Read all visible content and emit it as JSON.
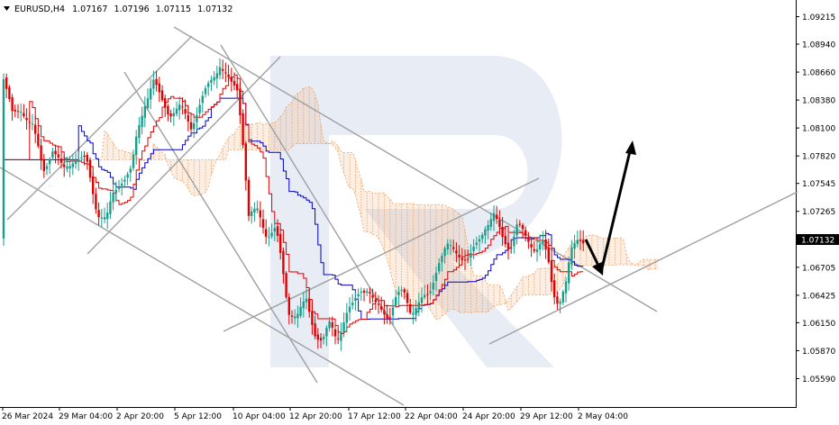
{
  "header": {
    "symbol": "EURUSD,H4",
    "open": "1.07167",
    "high": "1.07196",
    "low": "1.07115",
    "close": "1.07132"
  },
  "current_price_label": "1.07132",
  "colors": {
    "bull": "#1a9e8a",
    "bear": "#e00000",
    "tenkan": "#e00000",
    "kijun": "#0000c8",
    "cloud": "#f0a060",
    "trend": "#a0a0a0",
    "arrow": "#000000",
    "price_box": "#000000",
    "watermark": "#e8ecf4"
  },
  "chart_data": {
    "type": "candlestick",
    "symbol": "EURUSD",
    "timeframe": "H4",
    "ylim": [
      1.0559,
      1.0935
    ],
    "y_ticks": [
      "1.09215",
      "1.08940",
      "1.08660",
      "1.08380",
      "1.08100",
      "1.07820",
      "1.07545",
      "1.07265",
      "1.06985",
      "1.06705",
      "1.06425",
      "1.06150",
      "1.05870",
      "1.05590"
    ],
    "x_ticks": [
      "26 Mar 2024",
      "29 Mar 04:00",
      "2 Apr 20:00",
      "5 Apr 12:00",
      "10 Apr 04:00",
      "12 Apr 20:00",
      "17 Apr 12:00",
      "22 Apr 04:00",
      "24 Apr 20:00",
      "29 Apr 12:00",
      "2 May 04:00"
    ],
    "indicators": [
      "Ichimoku Kinko Hyo"
    ],
    "forecast": "short dip toward 1.0695, then rise toward 1.0810"
  }
}
